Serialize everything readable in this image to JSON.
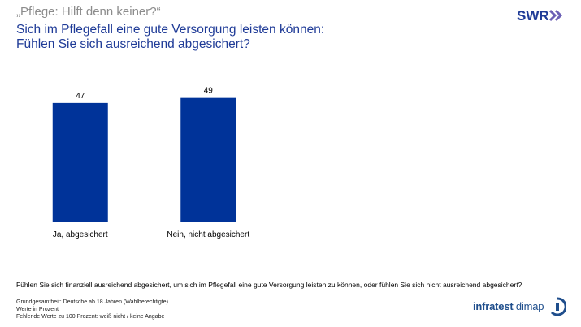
{
  "header": {
    "supertitle": "„Pflege: Hilft denn keiner?“",
    "title_line1": "Sich im Pflegefall eine gute Versorgung leisten können:",
    "title_line2": "Fühlen Sie sich ausreichend abgesichert?",
    "logo_text": "SWR"
  },
  "chart_data": {
    "type": "bar",
    "categories": [
      "Ja, abgesichert",
      "Nein, nicht abgesichert"
    ],
    "values": [
      47,
      49
    ],
    "ylim": [
      0,
      55
    ],
    "grid": false,
    "bar_color": "#003399"
  },
  "footer": {
    "question": "Fühlen Sie sich finanziell ausreichend abgesichert, um sich im Pflegefall eine gute Versorgung leisten zu können, oder fühlen Sie sich nicht ausreichend abgesichert?",
    "note1": "Grundgesamtheit: Deutsche ab 18 Jahren (Wahlberechtigte)",
    "note2": "Werte in Prozent",
    "note3": "Fehlende Werte zu 100 Prozent: weiß nicht / keine Angabe",
    "brand_bold": "infratest",
    "brand_light": " dimap"
  },
  "colors": {
    "title": "#1f3b97",
    "swr_logo": "#1f3b97",
    "swr_chevrons": "#6b5fb5"
  }
}
